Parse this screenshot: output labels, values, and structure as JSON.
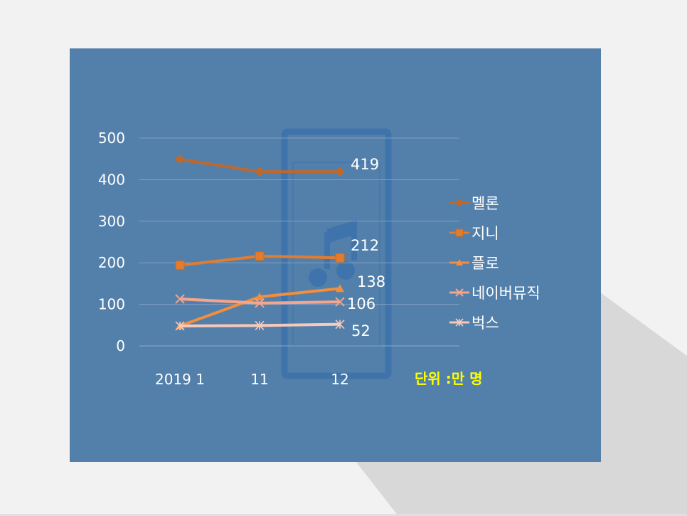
{
  "chart_data": {
    "type": "line",
    "categories": [
      "2019  1",
      "11",
      "12"
    ],
    "ylim": [
      0,
      500
    ],
    "yticks": [
      0,
      100,
      200,
      300,
      400,
      500
    ],
    "unit_label": "단위 :만 명",
    "series": [
      {
        "name": "멜론",
        "values": [
          449,
          419,
          419
        ],
        "color": "#c0682c",
        "marker": "diamond",
        "end_label": "419"
      },
      {
        "name": "지니",
        "values": [
          194,
          216,
          212
        ],
        "color": "#e27c2e",
        "marker": "square",
        "end_label": "212"
      },
      {
        "name": "플로",
        "values": [
          48,
          118,
          138
        ],
        "color": "#f28e3c",
        "marker": "triangle",
        "end_label": "138"
      },
      {
        "name": "네이버뮤직",
        "values": [
          113,
          103,
          106
        ],
        "color": "#f4a58a",
        "marker": "x",
        "end_label": "106"
      },
      {
        "name": "벅스",
        "values": [
          48,
          49,
          52
        ],
        "color": "#f8c9b8",
        "marker": "star",
        "end_label": "52"
      }
    ]
  },
  "icon": "music-phone-icon"
}
